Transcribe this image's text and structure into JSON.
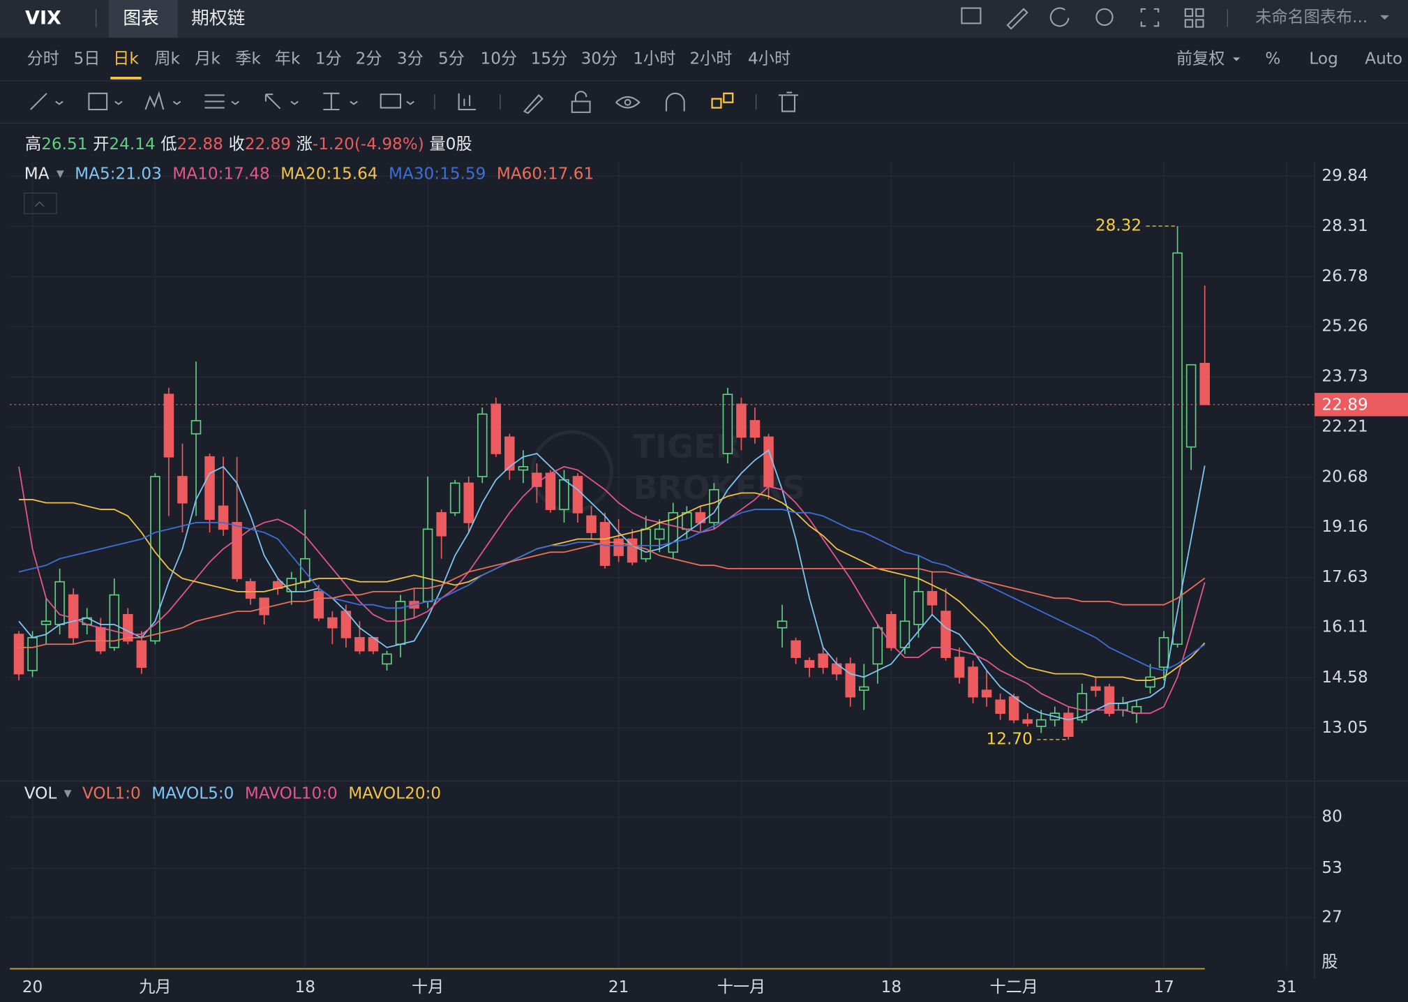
{
  "header": {
    "symbol": "VIX",
    "tabs": [
      "图表",
      "期权链"
    ],
    "active_tab": "图表",
    "layout_name": "未命名图表布..."
  },
  "timeframes": [
    "分时",
    "5日",
    "日k",
    "周k",
    "月k",
    "季k",
    "年k",
    "1分",
    "2分",
    "3分",
    "5分",
    "10分",
    "15分",
    "30分",
    "1小时",
    "2小时",
    "4小时"
  ],
  "active_timeframe": "日k",
  "right_options": [
    "前复权",
    "%",
    "Log",
    "Auto"
  ],
  "quote": [
    {
      "label": "高",
      "value": "26.51",
      "color": "#5fcf80"
    },
    {
      "label": "开",
      "value": "24.14",
      "color": "#5fcf80"
    },
    {
      "label": "低",
      "value": "22.88",
      "color": "#ec5b5e"
    },
    {
      "label": "收",
      "value": "22.89",
      "color": "#ec5b5e"
    },
    {
      "label": "涨",
      "value": "-1.20(-4.98%)",
      "color": "#ec5b5e"
    },
    {
      "label": "量",
      "value": "0股",
      "color": "#e8e9ec"
    }
  ],
  "watermark": [
    "TIGER",
    "BROKERS"
  ],
  "chart_data": [
    {
      "type": "candlestick",
      "indicator_label": "MA",
      "categories": [
        null,
        "20",
        null,
        null,
        null,
        null,
        null,
        null,
        null,
        null,
        "九月",
        null,
        null,
        null,
        null,
        null,
        null,
        null,
        null,
        null,
        null,
        "18",
        null,
        null,
        null,
        null,
        null,
        null,
        null,
        null,
        "十月",
        null,
        null,
        null,
        null,
        null,
        null,
        null,
        null,
        null,
        null,
        null,
        null,
        null,
        "21",
        null,
        null,
        null,
        null,
        null,
        null,
        null,
        null,
        "十一月",
        null,
        null,
        null,
        null,
        null,
        null,
        null,
        null,
        null,
        null,
        "18",
        null,
        null,
        null,
        null,
        null,
        null,
        null,
        null,
        "十二月",
        null,
        null,
        null,
        null,
        null,
        null,
        null,
        null,
        null,
        null,
        "17",
        null,
        null,
        null,
        null,
        null,
        null,
        null,
        null,
        "31"
      ],
      "open": [
        15.9,
        14.8,
        16.2,
        16.2,
        17.1,
        16.2,
        16.1,
        15.5,
        16.5,
        15.7,
        15.7,
        23.2,
        20.7,
        22.0,
        21.3,
        19.8,
        19.3,
        17.5,
        17.0,
        17.5,
        17.2,
        17.5,
        17.2,
        16.4,
        16.6,
        15.8,
        15.8,
        15.0,
        15.6,
        16.9,
        16.9,
        19.6,
        19.6,
        20.5,
        20.7,
        22.9,
        21.9,
        20.9,
        20.8,
        20.8,
        19.7,
        20.7,
        19.5,
        19.3,
        18.8,
        18.8,
        18.2,
        18.8,
        18.4,
        19.1,
        19.6,
        19.3,
        21.4,
        22.9,
        22.4,
        21.9,
        16.1,
        15.7,
        15.1,
        15.3,
        15.0,
        15.0,
        14.2,
        15.0,
        16.5,
        15.5,
        16.2,
        17.2,
        16.6,
        15.2,
        14.9,
        14.2,
        13.9,
        14.0,
        13.3,
        13.1,
        13.3,
        13.5,
        13.3,
        14.3,
        14.3,
        13.6,
        13.5,
        14.3,
        14.9,
        15.6,
        21.6,
        24.14,
        null,
        null,
        null,
        null,
        null,
        null
      ],
      "high": [
        16.0,
        16.0,
        17.0,
        17.9,
        17.3,
        16.7,
        16.4,
        17.6,
        16.7,
        16.0,
        20.8,
        23.4,
        21.7,
        24.2,
        21.4,
        21.3,
        21.3,
        17.6,
        17.0,
        17.6,
        17.8,
        19.7,
        17.4,
        16.6,
        16.8,
        16.3,
        15.8,
        15.4,
        17.1,
        17.3,
        20.7,
        19.7,
        20.6,
        20.7,
        22.8,
        23.1,
        22.0,
        21.5,
        21.1,
        20.9,
        20.9,
        20.8,
        19.8,
        19.6,
        19.4,
        19.1,
        19.5,
        19.4,
        19.9,
        19.8,
        19.8,
        20.5,
        23.4,
        23.1,
        22.8,
        22.0,
        16.8,
        15.8,
        15.2,
        15.5,
        15.2,
        15.2,
        15.0,
        16.2,
        16.6,
        17.6,
        18.3,
        17.8,
        17.3,
        15.5,
        15.1,
        14.8,
        14.1,
        14.1,
        13.5,
        13.6,
        13.7,
        13.7,
        14.4,
        14.6,
        14.4,
        14.0,
        13.9,
        15.0,
        16.0,
        28.32,
        24.1,
        26.51,
        null,
        null,
        null,
        null,
        null,
        null
      ],
      "low": [
        14.5,
        14.6,
        15.6,
        15.9,
        15.6,
        15.9,
        15.3,
        15.4,
        15.6,
        14.7,
        15.6,
        19.5,
        19.0,
        19.5,
        19.0,
        18.9,
        17.5,
        16.8,
        16.2,
        17.1,
        16.8,
        17.3,
        16.3,
        15.6,
        15.5,
        15.3,
        15.3,
        14.8,
        15.2,
        16.4,
        16.7,
        18.2,
        19.5,
        19.0,
        20.5,
        21.3,
        20.6,
        20.5,
        19.9,
        19.6,
        19.3,
        19.3,
        18.8,
        17.9,
        18.1,
        18.0,
        18.1,
        18.4,
        18.2,
        18.8,
        19.0,
        19.1,
        21.1,
        21.5,
        21.7,
        20.0,
        15.5,
        15.0,
        14.6,
        14.7,
        14.5,
        13.7,
        13.6,
        14.4,
        15.4,
        15.3,
        15.8,
        16.5,
        15.1,
        14.4,
        13.8,
        13.7,
        13.3,
        13.2,
        13.1,
        12.9,
        13.1,
        12.7,
        13.2,
        14.0,
        13.4,
        13.4,
        13.2,
        14.1,
        14.5,
        15.5,
        20.9,
        22.88,
        null,
        null,
        null,
        null,
        null,
        null
      ],
      "close": [
        14.7,
        15.8,
        16.3,
        17.5,
        15.8,
        16.4,
        15.4,
        17.1,
        15.7,
        14.9,
        20.7,
        21.3,
        19.9,
        22.4,
        19.4,
        19.1,
        17.6,
        17.0,
        16.5,
        17.3,
        17.6,
        18.2,
        16.4,
        16.1,
        15.8,
        15.4,
        15.4,
        15.3,
        16.9,
        16.7,
        19.1,
        18.9,
        20.5,
        19.3,
        22.6,
        21.4,
        20.9,
        21.0,
        20.4,
        19.7,
        20.6,
        19.6,
        19.0,
        18.0,
        18.3,
        18.1,
        19.1,
        19.1,
        19.6,
        19.6,
        19.3,
        20.3,
        23.2,
        21.9,
        21.9,
        20.4,
        16.3,
        15.2,
        14.9,
        14.9,
        14.7,
        14.0,
        14.3,
        16.1,
        15.5,
        16.3,
        17.2,
        16.8,
        15.2,
        14.6,
        14.0,
        14.0,
        13.5,
        13.3,
        13.2,
        13.3,
        13.5,
        12.8,
        14.1,
        14.2,
        13.5,
        13.8,
        13.7,
        14.6,
        15.8,
        27.5,
        24.1,
        22.89,
        null,
        null,
        null,
        null,
        null,
        null
      ],
      "up_color": "#5fcf80",
      "down_color": "#ec5b5e",
      "series": [
        {
          "name": "MA5:21.03",
          "color": "#7cc7f5",
          "values": [
            16.3,
            15.8,
            15.9,
            16.2,
            16.3,
            16.4,
            16.2,
            16.2,
            16.0,
            15.8,
            16.3,
            17.5,
            18.5,
            20.0,
            20.8,
            21.0,
            20.5,
            19.5,
            18.3,
            17.6,
            17.2,
            17.2,
            17.3,
            17.0,
            16.6,
            16.1,
            15.8,
            15.5,
            15.6,
            15.7,
            16.4,
            17.3,
            18.3,
            19.0,
            19.9,
            20.6,
            21.0,
            21.3,
            21.4,
            21.0,
            20.6,
            20.3,
            19.9,
            19.5,
            19.0,
            18.6,
            18.4,
            18.5,
            18.7,
            19.0,
            19.3,
            19.6,
            20.3,
            20.8,
            21.2,
            21.5,
            20.3,
            18.8,
            17.0,
            15.5,
            15.0,
            14.7,
            14.6,
            14.8,
            15.0,
            15.5,
            16.0,
            16.5,
            16.1,
            15.9,
            15.4,
            14.8,
            14.3,
            14.0,
            13.7,
            13.5,
            13.4,
            13.3,
            13.4,
            13.6,
            13.8,
            13.8,
            13.9,
            14.0,
            14.3,
            16.6,
            18.8,
            21.03,
            null,
            null,
            null,
            null,
            null,
            null
          ]
        },
        {
          "name": "MA10:17.48",
          "color": "#e4578a",
          "values": [
            21.0,
            18.5,
            17.0,
            16.5,
            16.4,
            16.2,
            16.1,
            16.0,
            15.9,
            15.9,
            16.2,
            16.6,
            17.1,
            17.6,
            18.1,
            18.5,
            18.8,
            19.1,
            19.3,
            19.4,
            19.2,
            18.9,
            18.4,
            17.9,
            17.4,
            16.9,
            16.5,
            16.3,
            16.3,
            16.4,
            16.6,
            17.0,
            17.3,
            17.8,
            18.4,
            19.0,
            19.6,
            20.1,
            20.5,
            20.8,
            21.0,
            20.9,
            20.6,
            20.3,
            19.9,
            19.6,
            19.4,
            19.3,
            19.2,
            19.1,
            19.0,
            19.1,
            19.4,
            19.7,
            20.0,
            20.4,
            20.3,
            19.9,
            19.4,
            18.8,
            18.2,
            17.6,
            16.9,
            16.2,
            15.6,
            15.2,
            15.2,
            15.5,
            15.5,
            15.4,
            15.3,
            15.1,
            14.8,
            14.6,
            14.4,
            14.1,
            13.9,
            13.7,
            13.6,
            13.6,
            13.6,
            13.6,
            13.5,
            13.5,
            13.7,
            14.6,
            16.0,
            17.48,
            null,
            null,
            null,
            null,
            null,
            null
          ]
        },
        {
          "name": "MA20:15.64",
          "color": "#f3c444",
          "values": [
            20.0,
            20.0,
            19.9,
            19.9,
            19.9,
            19.8,
            19.7,
            19.7,
            19.5,
            19.0,
            18.4,
            17.9,
            17.6,
            17.5,
            17.4,
            17.3,
            17.2,
            17.2,
            17.2,
            17.3,
            17.4,
            17.5,
            17.6,
            17.6,
            17.6,
            17.5,
            17.5,
            17.5,
            17.6,
            17.7,
            17.6,
            17.5,
            17.4,
            17.5,
            17.7,
            17.9,
            18.1,
            18.3,
            18.5,
            18.6,
            18.7,
            18.8,
            18.8,
            18.8,
            18.9,
            19.0,
            19.1,
            19.3,
            19.4,
            19.6,
            19.8,
            19.9,
            20.1,
            20.2,
            20.2,
            20.1,
            19.9,
            19.6,
            19.2,
            18.9,
            18.5,
            18.3,
            18.1,
            17.9,
            17.8,
            17.7,
            17.6,
            17.4,
            17.2,
            16.9,
            16.5,
            16.1,
            15.6,
            15.2,
            14.9,
            14.8,
            14.7,
            14.7,
            14.7,
            14.6,
            14.6,
            14.6,
            14.5,
            14.5,
            14.6,
            14.9,
            15.2,
            15.64,
            null,
            null,
            null,
            null,
            null,
            null
          ]
        },
        {
          "name": "MA30:15.59",
          "color": "#3c6fd8",
          "values": [
            17.8,
            17.9,
            18.0,
            18.2,
            18.3,
            18.4,
            18.5,
            18.6,
            18.7,
            18.8,
            19.0,
            19.1,
            19.2,
            19.3,
            19.3,
            19.3,
            19.2,
            19.1,
            19.0,
            18.8,
            18.3,
            17.8,
            17.3,
            17.0,
            16.9,
            16.8,
            16.8,
            16.7,
            16.7,
            16.8,
            16.9,
            17.0,
            17.2,
            17.4,
            17.7,
            17.9,
            18.1,
            18.3,
            18.5,
            18.6,
            18.6,
            18.7,
            18.7,
            18.6,
            18.6,
            18.6,
            18.6,
            18.6,
            18.7,
            18.8,
            19.0,
            19.2,
            19.4,
            19.6,
            19.7,
            19.7,
            19.7,
            19.6,
            19.6,
            19.5,
            19.3,
            19.1,
            19.0,
            18.8,
            18.6,
            18.4,
            18.3,
            18.1,
            18.0,
            17.8,
            17.6,
            17.4,
            17.2,
            17.0,
            16.8,
            16.6,
            16.4,
            16.2,
            16.0,
            15.8,
            15.5,
            15.3,
            15.1,
            14.9,
            14.8,
            15.0,
            15.3,
            15.59,
            null,
            null,
            null,
            null,
            null,
            null
          ]
        },
        {
          "name": "MA60:17.61",
          "color": "#ee6e5a",
          "values": [
            15.5,
            15.5,
            15.6,
            15.6,
            15.6,
            15.7,
            15.7,
            15.7,
            15.8,
            15.8,
            15.9,
            16.0,
            16.1,
            16.3,
            16.4,
            16.5,
            16.6,
            16.6,
            16.7,
            16.8,
            16.9,
            16.9,
            17.0,
            17.0,
            17.1,
            17.1,
            17.2,
            17.2,
            17.2,
            17.3,
            17.3,
            17.4,
            17.6,
            17.8,
            17.9,
            18.0,
            18.1,
            18.2,
            18.3,
            18.4,
            18.4,
            18.5,
            18.6,
            18.7,
            18.7,
            18.6,
            18.5,
            18.3,
            18.2,
            18.1,
            18.0,
            18.0,
            17.9,
            17.9,
            17.9,
            17.9,
            17.9,
            17.9,
            17.9,
            17.9,
            17.9,
            17.9,
            17.9,
            17.9,
            17.9,
            17.9,
            17.9,
            17.8,
            17.8,
            17.7,
            17.6,
            17.5,
            17.4,
            17.3,
            17.2,
            17.1,
            17.0,
            17.0,
            16.9,
            16.9,
            16.9,
            16.8,
            16.8,
            16.8,
            16.8,
            17.0,
            17.3,
            17.61,
            null,
            null,
            null,
            null,
            null,
            null
          ]
        }
      ],
      "ylim": [
        11.49,
        30.28
      ],
      "yticks": [
        29.84,
        28.31,
        26.78,
        25.26,
        23.73,
        22.21,
        20.68,
        19.16,
        17.63,
        16.11,
        14.58,
        13.05
      ],
      "current_price": 22.89,
      "current_price_color": "#ec5b5e",
      "high_marker": 28.32,
      "low_marker": {
        "value": 12.7,
        "label": "12.70"
      },
      "marker_color": "#f5d13a",
      "grid": true
    },
    {
      "type": "volume",
      "indicator_label": "VOL",
      "legend": [
        {
          "name": "VOL1:0",
          "color": "#ee6e5a"
        },
        {
          "name": "MAVOL5:0",
          "color": "#7cc7f5"
        },
        {
          "name": "MAVOL10:0",
          "color": "#e4578a"
        },
        {
          "name": "MAVOL20:0",
          "color": "#f3c444"
        }
      ],
      "ylim": [
        0,
        99
      ],
      "yticks": [
        80,
        53,
        27
      ],
      "unit": "股",
      "grid": true
    }
  ]
}
